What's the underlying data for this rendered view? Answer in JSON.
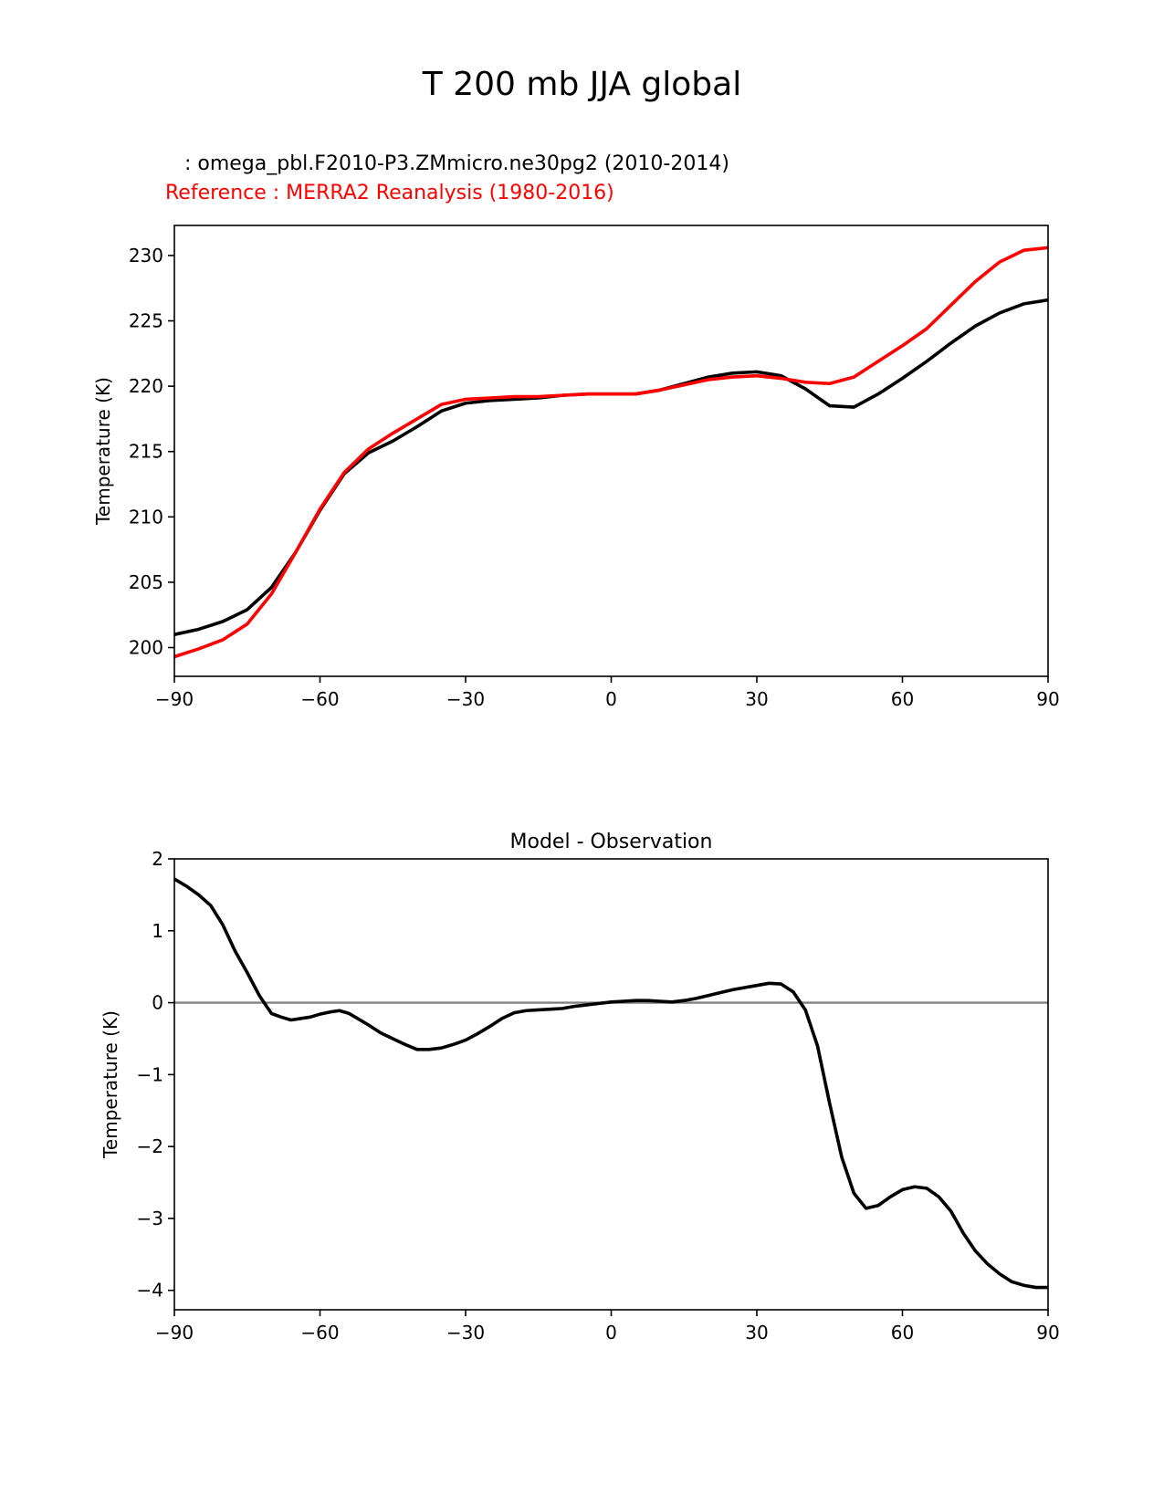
{
  "figure": {
    "title": "T 200 mb JJA global",
    "test_label": "   : omega_pbl.F2010-P3.ZMmicro.ne30pg2 (2010-2014)",
    "ref_label": "Reference : MERRA2 Reanalysis (1980-2016)"
  },
  "colors": {
    "test": "#000000",
    "reference": "#ff0000",
    "zero_line": "#808080"
  },
  "chart_data": [
    {
      "type": "line",
      "title": "",
      "xlabel": "",
      "ylabel": "Temperature (K)",
      "xlim": [
        -90,
        90
      ],
      "ylim": [
        197.8,
        232.3
      ],
      "xticks": [
        -90,
        -60,
        -30,
        0,
        30,
        60,
        90
      ],
      "xtick_labels": [
        "−90",
        "−60",
        "−30",
        "0",
        "30",
        "60",
        "90"
      ],
      "yticks": [
        200,
        205,
        210,
        215,
        220,
        225,
        230
      ],
      "ytick_labels": [
        "200",
        "205",
        "210",
        "215",
        "220",
        "225",
        "230"
      ],
      "series": [
        {
          "name": "omega_pbl.F2010-P3.ZMmicro.ne30pg2 (2010-2014)",
          "color": "#000000",
          "x": [
            -90,
            -85,
            -80,
            -75,
            -70,
            -65,
            -60,
            -55,
            -50,
            -45,
            -40,
            -35,
            -30,
            -25,
            -20,
            -15,
            -10,
            -5,
            0,
            5,
            10,
            15,
            20,
            25,
            30,
            35,
            40,
            45,
            50,
            55,
            60,
            65,
            70,
            75,
            80,
            85,
            90
          ],
          "values": [
            201.0,
            201.4,
            202.0,
            202.9,
            204.6,
            207.3,
            210.5,
            213.3,
            214.9,
            215.8,
            216.9,
            218.1,
            218.7,
            218.9,
            219.0,
            219.1,
            219.3,
            219.4,
            219.4,
            219.4,
            219.7,
            220.2,
            220.7,
            221.0,
            221.1,
            220.8,
            219.8,
            218.5,
            218.4,
            219.4,
            220.6,
            221.9,
            223.3,
            224.6,
            225.6,
            226.3,
            226.6
          ]
        },
        {
          "name": "Reference : MERRA2 Reanalysis (1980-2016)",
          "color": "#ff0000",
          "x": [
            -90,
            -85,
            -80,
            -75,
            -70,
            -65,
            -60,
            -55,
            -50,
            -45,
            -40,
            -35,
            -30,
            -25,
            -20,
            -15,
            -10,
            -5,
            0,
            5,
            10,
            15,
            20,
            25,
            30,
            35,
            40,
            45,
            50,
            55,
            60,
            65,
            70,
            75,
            80,
            85,
            90
          ],
          "values": [
            199.3,
            199.9,
            200.6,
            201.8,
            204.1,
            207.3,
            210.6,
            213.4,
            215.2,
            216.4,
            217.5,
            218.6,
            219.0,
            219.1,
            219.2,
            219.2,
            219.3,
            219.4,
            219.4,
            219.4,
            219.7,
            220.1,
            220.5,
            220.7,
            220.8,
            220.6,
            220.3,
            220.2,
            220.7,
            221.9,
            223.1,
            224.4,
            226.2,
            228.0,
            229.5,
            230.4,
            230.6
          ]
        }
      ]
    },
    {
      "type": "line",
      "title": "Model - Observation",
      "xlabel": "",
      "ylabel": "Temperature (K)",
      "xlim": [
        -90,
        90
      ],
      "ylim": [
        -4.27,
        2.0
      ],
      "xticks": [
        -90,
        -60,
        -30,
        0,
        30,
        60,
        90
      ],
      "xtick_labels": [
        "−90",
        "−60",
        "−30",
        "0",
        "30",
        "60",
        "90"
      ],
      "yticks": [
        -4,
        -3,
        -2,
        -1,
        0,
        1,
        2
      ],
      "ytick_labels": [
        "−4",
        "−3",
        "−2",
        "−1",
        "0",
        "1",
        "2"
      ],
      "reference_line": 0,
      "series": [
        {
          "name": "Model - Observation",
          "color": "#000000",
          "x": [
            -90,
            -87.5,
            -85,
            -82.5,
            -80,
            -77.5,
            -75,
            -72.5,
            -70,
            -68,
            -66,
            -64,
            -62,
            -60,
            -58,
            -56,
            -54,
            -52,
            -50,
            -47.5,
            -45,
            -42.5,
            -40,
            -37.5,
            -35,
            -32.5,
            -30,
            -27.5,
            -25,
            -22.5,
            -20,
            -17.5,
            -15,
            -12.5,
            -10,
            -7.5,
            -5,
            -2.5,
            0,
            2.5,
            5,
            7.5,
            10,
            12.5,
            15,
            17.5,
            20,
            22.5,
            25,
            27.5,
            30,
            32.5,
            35,
            37.5,
            40,
            42.5,
            45,
            47.5,
            50,
            52.5,
            55,
            57.5,
            60,
            62.5,
            65,
            67.5,
            70,
            72.5,
            75,
            77.5,
            80,
            82.5,
            85,
            87.5,
            90
          ],
          "values": [
            1.72,
            1.62,
            1.5,
            1.35,
            1.08,
            0.72,
            0.42,
            0.1,
            -0.15,
            -0.2,
            -0.24,
            -0.22,
            -0.2,
            -0.16,
            -0.13,
            -0.11,
            -0.15,
            -0.23,
            -0.31,
            -0.42,
            -0.5,
            -0.58,
            -0.65,
            -0.65,
            -0.63,
            -0.58,
            -0.52,
            -0.43,
            -0.33,
            -0.22,
            -0.14,
            -0.11,
            -0.1,
            -0.09,
            -0.08,
            -0.05,
            -0.03,
            -0.01,
            0.01,
            0.02,
            0.03,
            0.03,
            0.02,
            0.01,
            0.03,
            0.06,
            0.1,
            0.14,
            0.18,
            0.21,
            0.24,
            0.27,
            0.26,
            0.15,
            -0.1,
            -0.6,
            -1.4,
            -2.15,
            -2.65,
            -2.86,
            -2.82,
            -2.7,
            -2.6,
            -2.56,
            -2.58,
            -2.7,
            -2.9,
            -3.2,
            -3.45,
            -3.63,
            -3.77,
            -3.88,
            -3.93,
            -3.96,
            -3.96
          ]
        }
      ]
    }
  ]
}
